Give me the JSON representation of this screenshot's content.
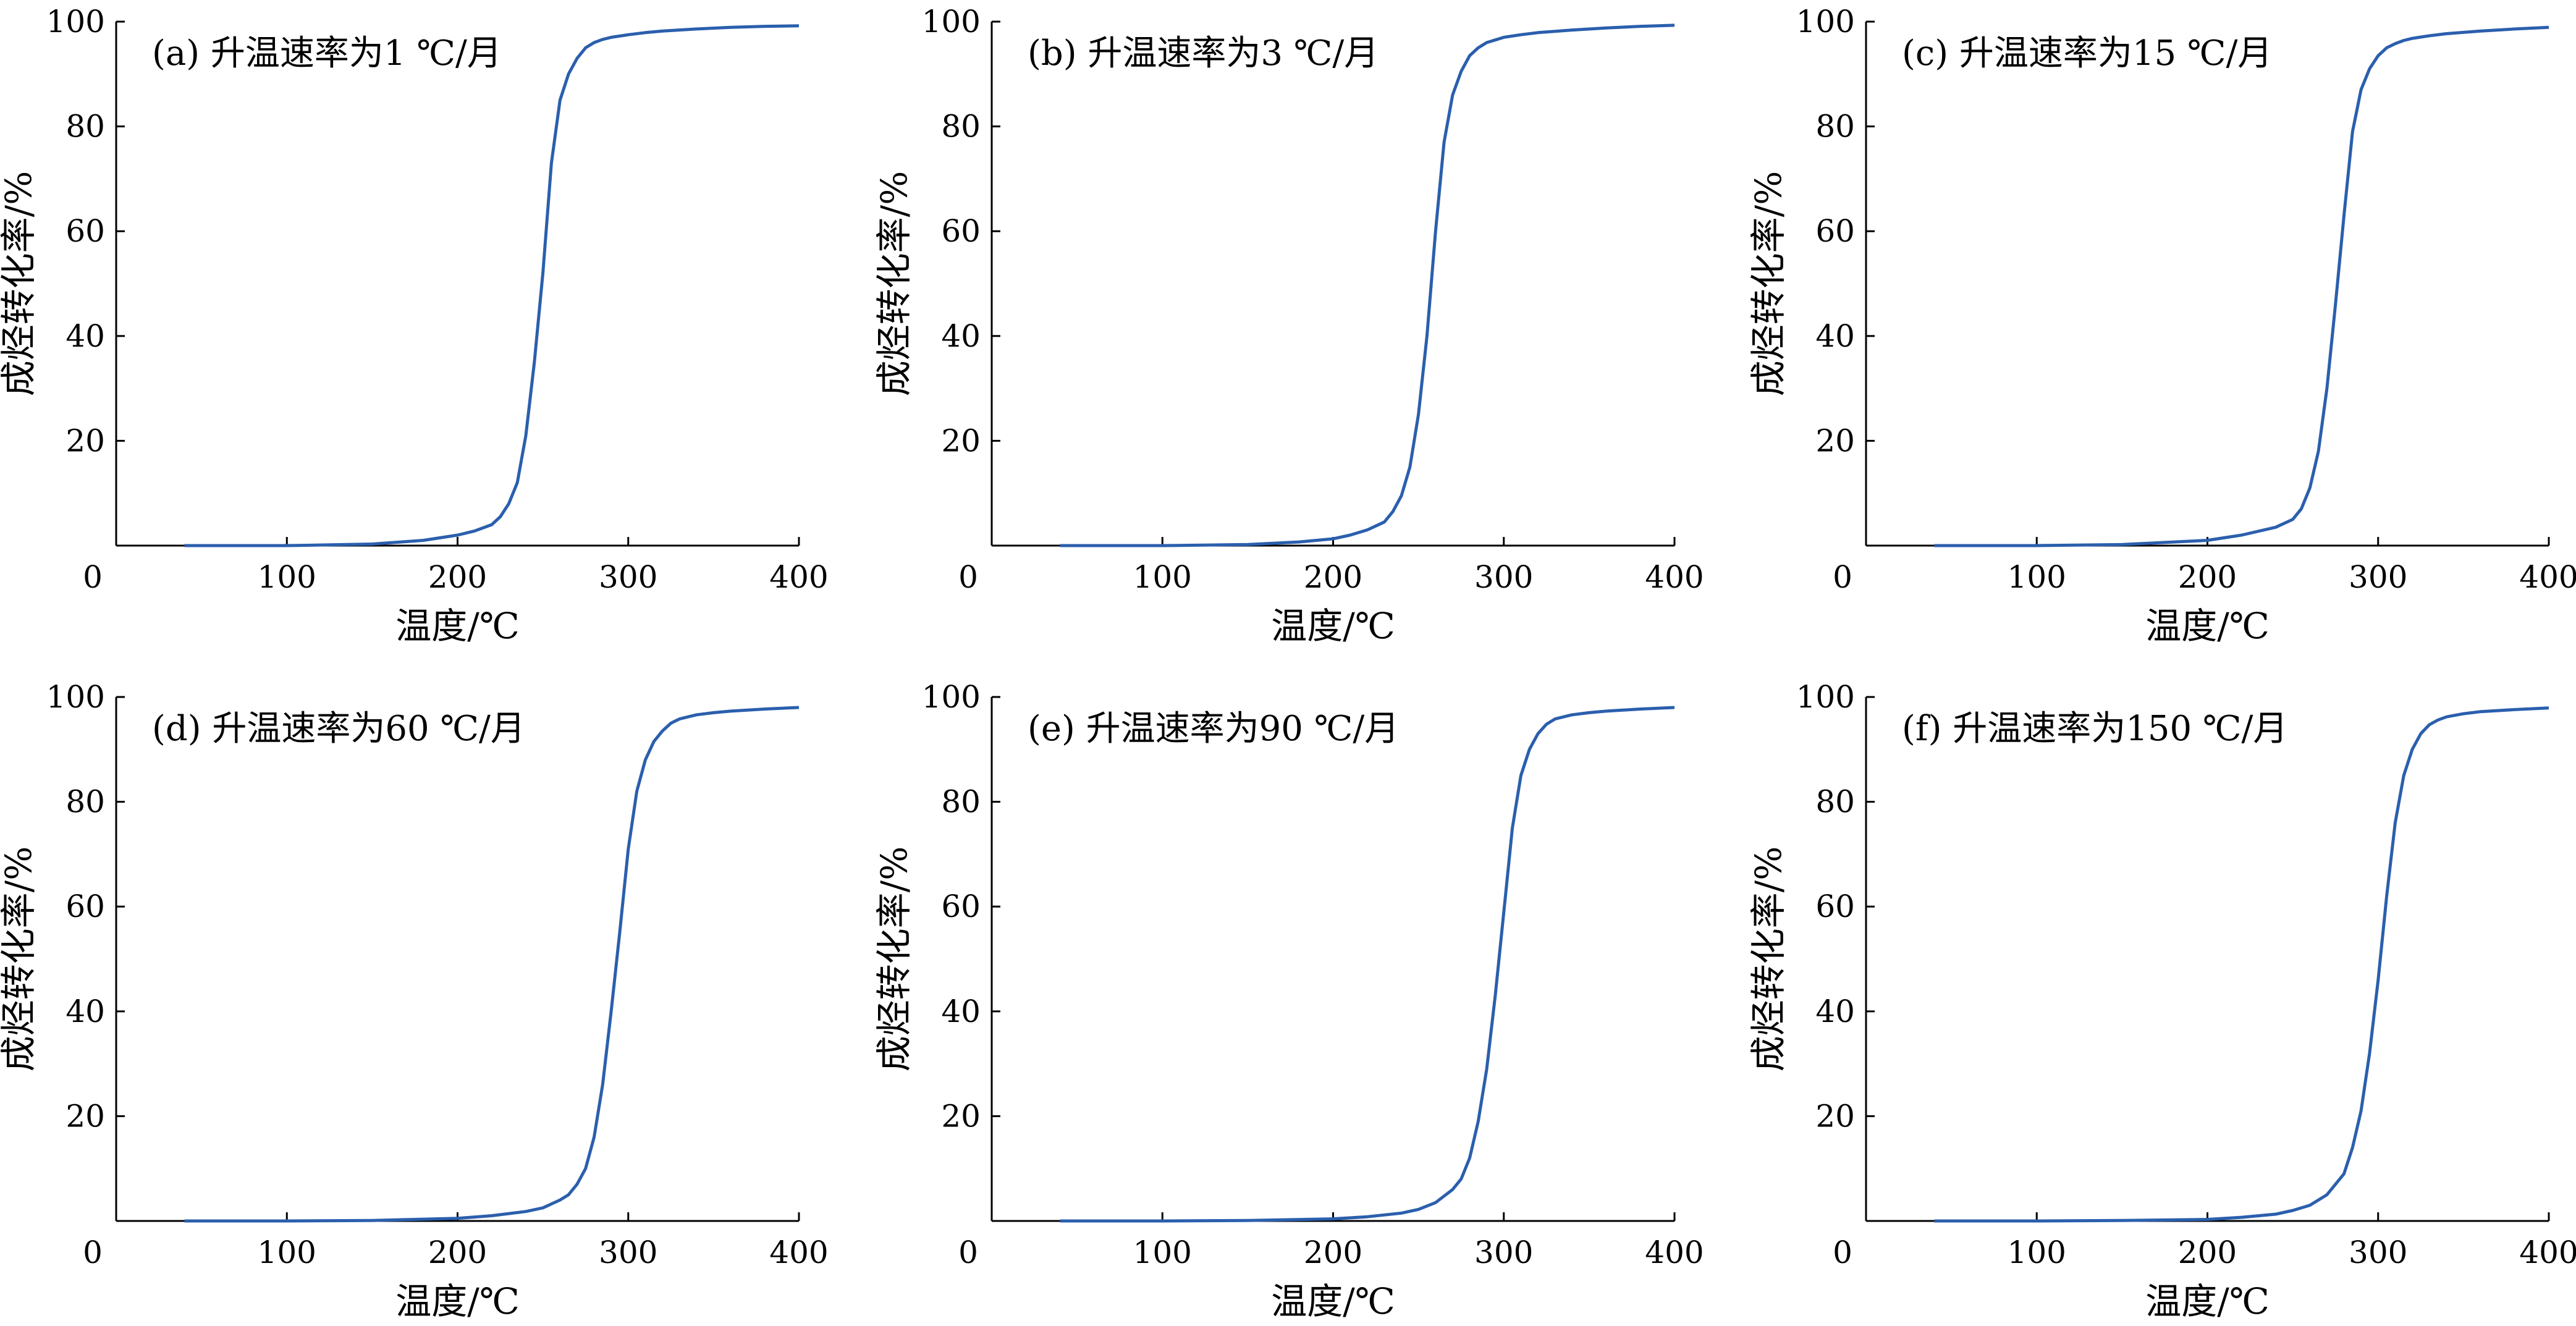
{
  "chart_data": [
    {
      "type": "line",
      "title": "(a) 升温速率为1 ℃/月",
      "xlabel": "温度/℃",
      "ylabel": "成烃转化率/%",
      "xlim": [
        0,
        400
      ],
      "ylim": [
        0,
        100
      ],
      "xticks": [
        0,
        100,
        200,
        300,
        400
      ],
      "yticks": [
        20,
        40,
        60,
        80,
        100
      ],
      "series": [
        {
          "color": "#2b5fad",
          "x": [
            40,
            100,
            150,
            180,
            200,
            210,
            220,
            225,
            230,
            235,
            240,
            245,
            250,
            255,
            260,
            265,
            270,
            275,
            280,
            285,
            290,
            300,
            310,
            320,
            340,
            360,
            380,
            400
          ],
          "y": [
            0,
            0,
            0.3,
            1,
            2,
            2.8,
            4,
            5.5,
            8,
            12,
            21,
            35,
            52,
            73,
            85,
            90,
            93,
            95,
            96,
            96.6,
            97,
            97.5,
            97.9,
            98.2,
            98.6,
            98.9,
            99.1,
            99.2
          ]
        }
      ]
    },
    {
      "type": "line",
      "title": "(b) 升温速率为3 ℃/月",
      "xlabel": "温度/℃",
      "ylabel": "成烃转化率/%",
      "xlim": [
        0,
        400
      ],
      "ylim": [
        0,
        100
      ],
      "xticks": [
        0,
        100,
        200,
        300,
        400
      ],
      "yticks": [
        20,
        40,
        60,
        80,
        100
      ],
      "series": [
        {
          "color": "#2b5fad",
          "x": [
            40,
            100,
            150,
            180,
            200,
            210,
            220,
            230,
            235,
            240,
            245,
            250,
            255,
            260,
            265,
            270,
            275,
            280,
            285,
            290,
            295,
            300,
            310,
            320,
            340,
            360,
            380,
            400
          ],
          "y": [
            0,
            0,
            0.2,
            0.7,
            1.3,
            2,
            3,
            4.5,
            6.5,
            9.5,
            15,
            25,
            40,
            60,
            77,
            86,
            90.5,
            93.5,
            95,
            96,
            96.5,
            97,
            97.5,
            97.9,
            98.4,
            98.8,
            99.1,
            99.3
          ]
        }
      ]
    },
    {
      "type": "line",
      "title": "(c) 升温速率为15 ℃/月",
      "xlabel": "温度/℃",
      "ylabel": "成烃转化率/%",
      "xlim": [
        0,
        400
      ],
      "ylim": [
        0,
        100
      ],
      "xticks": [
        0,
        100,
        200,
        300,
        400
      ],
      "yticks": [
        20,
        40,
        60,
        80,
        100
      ],
      "series": [
        {
          "color": "#2b5fad",
          "x": [
            40,
            100,
            150,
            200,
            220,
            240,
            250,
            255,
            260,
            265,
            270,
            275,
            280,
            285,
            290,
            295,
            300,
            305,
            310,
            315,
            320,
            330,
            340,
            360,
            380,
            400
          ],
          "y": [
            0,
            0,
            0.2,
            1,
            2,
            3.5,
            5,
            7,
            11,
            18,
            30,
            46,
            63,
            79,
            87,
            91,
            93.5,
            95,
            95.8,
            96.4,
            96.8,
            97.3,
            97.7,
            98.2,
            98.6,
            98.9
          ]
        }
      ]
    },
    {
      "type": "line",
      "title": "(d) 升温速率为60 ℃/月",
      "xlabel": "温度/℃",
      "ylabel": "成烃转化率/%",
      "xlim": [
        0,
        400
      ],
      "ylim": [
        0,
        100
      ],
      "xticks": [
        0,
        100,
        200,
        300,
        400
      ],
      "yticks": [
        20,
        40,
        60,
        80,
        100
      ],
      "series": [
        {
          "color": "#2b5fad",
          "x": [
            40,
            100,
            150,
            200,
            220,
            240,
            250,
            260,
            265,
            270,
            275,
            280,
            285,
            290,
            295,
            300,
            305,
            310,
            315,
            320,
            325,
            330,
            340,
            350,
            360,
            380,
            400
          ],
          "y": [
            0,
            0,
            0.1,
            0.5,
            1,
            1.8,
            2.5,
            4,
            5,
            7,
            10,
            16,
            26,
            40,
            55,
            71,
            82,
            88,
            91.5,
            93.5,
            95,
            95.8,
            96.6,
            97,
            97.3,
            97.7,
            98
          ]
        }
      ]
    },
    {
      "type": "line",
      "title": "(e) 升温速率为90 ℃/月",
      "xlabel": "温度/℃",
      "ylabel": "成烃转化率/%",
      "xlim": [
        0,
        400
      ],
      "ylim": [
        0,
        100
      ],
      "xticks": [
        0,
        100,
        200,
        300,
        400
      ],
      "yticks": [
        20,
        40,
        60,
        80,
        100
      ],
      "series": [
        {
          "color": "#2b5fad",
          "x": [
            40,
            100,
            150,
            200,
            220,
            240,
            250,
            260,
            270,
            275,
            280,
            285,
            290,
            295,
            300,
            305,
            310,
            315,
            320,
            325,
            330,
            340,
            350,
            360,
            380,
            400
          ],
          "y": [
            0,
            0,
            0.1,
            0.4,
            0.8,
            1.5,
            2.2,
            3.5,
            6,
            8,
            12,
            19,
            29,
            43,
            59,
            75,
            85,
            90,
            93,
            94.8,
            95.8,
            96.6,
            97,
            97.3,
            97.7,
            98
          ]
        }
      ]
    },
    {
      "type": "line",
      "title": "(f) 升温速率为150 ℃/月",
      "xlabel": "温度/℃",
      "ylabel": "成烃转化率/%",
      "xlim": [
        0,
        400
      ],
      "ylim": [
        0,
        100
      ],
      "xticks": [
        0,
        100,
        200,
        300,
        400
      ],
      "yticks": [
        20,
        40,
        60,
        80,
        100
      ],
      "series": [
        {
          "color": "#2b5fad",
          "x": [
            40,
            100,
            150,
            200,
            220,
            240,
            250,
            260,
            270,
            280,
            285,
            290,
            295,
            300,
            305,
            310,
            315,
            320,
            325,
            330,
            335,
            340,
            350,
            360,
            380,
            400
          ],
          "y": [
            0,
            0,
            0.1,
            0.3,
            0.7,
            1.3,
            2,
            3,
            5,
            9,
            14,
            21,
            32,
            46,
            62,
            76,
            85,
            90,
            93,
            94.7,
            95.6,
            96.2,
            96.8,
            97.2,
            97.6,
            97.9
          ]
        }
      ]
    }
  ]
}
